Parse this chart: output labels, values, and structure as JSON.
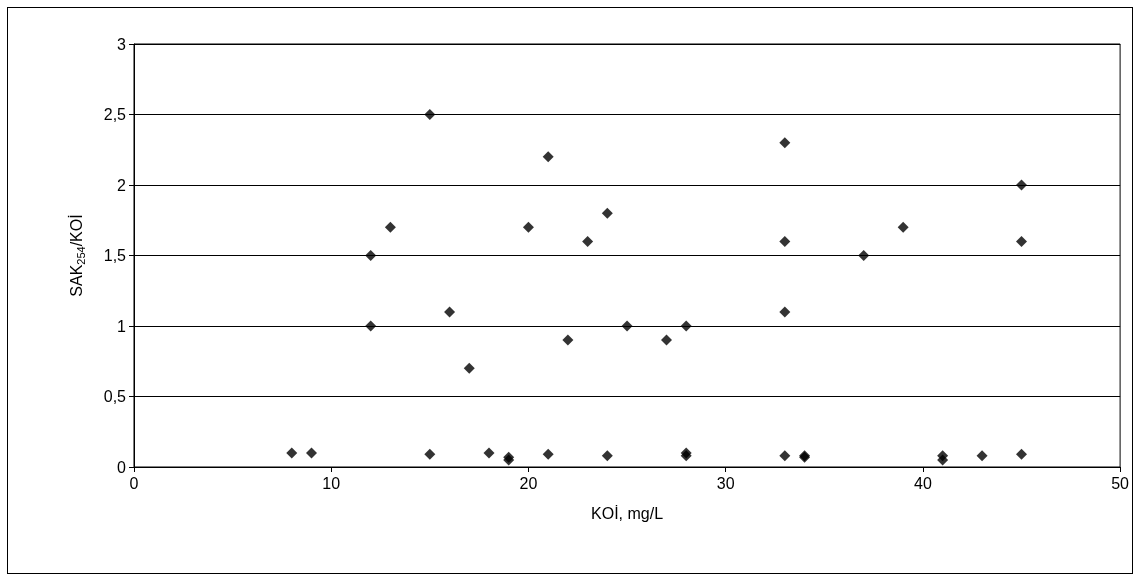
{
  "chart_data": {
    "type": "scatter",
    "xlabel": "KOİ, mg/L",
    "ylabel": "SAK$_{254}$/KOİ",
    "x": [
      8,
      9,
      12,
      12,
      13,
      15,
      15,
      16,
      17,
      18,
      19,
      19,
      20,
      21,
      21,
      22,
      23,
      24,
      24,
      25,
      27,
      28,
      28,
      28,
      33,
      33,
      33,
      33,
      34,
      34,
      37,
      39,
      41,
      41,
      43,
      45,
      45,
      45
    ],
    "series": [
      {
        "color": "#000000",
        "values": [
          0.1,
          0.1,
          1.5,
          1.0,
          1.7,
          2.5,
          0.09,
          1.1,
          0.7,
          0.1,
          0.07,
          0.05,
          1.7,
          2.2,
          0.09,
          0.9,
          1.6,
          1.8,
          0.08,
          1.0,
          0.9,
          1.0,
          0.1,
          0.08,
          2.3,
          1.6,
          1.1,
          0.08,
          0.08,
          0.07,
          1.5,
          1.7,
          0.08,
          0.05,
          0.08,
          2.0,
          1.6,
          0.09
        ]
      }
    ],
    "xlim": [
      0,
      50
    ],
    "xticks": [
      0,
      10,
      20,
      30,
      40,
      50
    ],
    "ylim": [
      0,
      3
    ],
    "yticks": [
      0,
      {
        "value": 0.5,
        "label": "0,5"
      },
      1,
      {
        "value": 1.5,
        "label": "1,5"
      },
      2,
      {
        "value": 2.5,
        "label": "2,5"
      },
      3
    ],
    "grid": "y",
    "marker": "diamond"
  }
}
